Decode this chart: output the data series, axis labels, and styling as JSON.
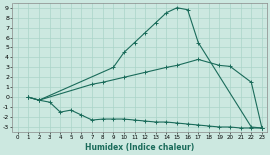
{
  "xlabel": "Humidex (Indice chaleur)",
  "xlim": [
    -0.5,
    23.5
  ],
  "ylim": [
    -3.5,
    9.5
  ],
  "xticks": [
    0,
    1,
    2,
    3,
    4,
    5,
    6,
    7,
    8,
    9,
    10,
    11,
    12,
    13,
    14,
    15,
    16,
    17,
    18,
    19,
    20,
    21,
    22,
    23
  ],
  "yticks": [
    -3,
    -2,
    -1,
    0,
    1,
    2,
    3,
    4,
    5,
    6,
    7,
    8,
    9
  ],
  "bg_color": "#cce8e0",
  "grid_color": "#aad4c8",
  "line_color": "#1a6b5a",
  "line1_x": [
    1,
    2,
    9,
    10,
    11,
    12,
    13,
    14,
    15,
    16,
    17,
    22,
    23
  ],
  "line1_y": [
    0.0,
    -0.3,
    3.0,
    4.5,
    5.5,
    6.5,
    7.5,
    8.5,
    9.0,
    8.8,
    5.5,
    -3.0,
    -3.1
  ],
  "line2_x": [
    1,
    2,
    7,
    8,
    10,
    12,
    14,
    15,
    17,
    19,
    20,
    22,
    23
  ],
  "line2_y": [
    0.0,
    -0.3,
    1.3,
    1.5,
    2.0,
    2.5,
    3.0,
    3.2,
    3.8,
    3.2,
    3.1,
    1.5,
    -3.1
  ],
  "line3_x": [
    1,
    2,
    3,
    4,
    5,
    6,
    7,
    8,
    9,
    10,
    11,
    12,
    13,
    14,
    15,
    16,
    17,
    18,
    19,
    20,
    21,
    22,
    23
  ],
  "line3_y": [
    0.0,
    -0.3,
    -0.5,
    -1.5,
    -1.3,
    -1.8,
    -2.3,
    -2.2,
    -2.2,
    -2.2,
    -2.3,
    -2.4,
    -2.5,
    -2.5,
    -2.6,
    -2.7,
    -2.8,
    -2.9,
    -3.0,
    -3.0,
    -3.1,
    -3.1,
    -3.1
  ]
}
